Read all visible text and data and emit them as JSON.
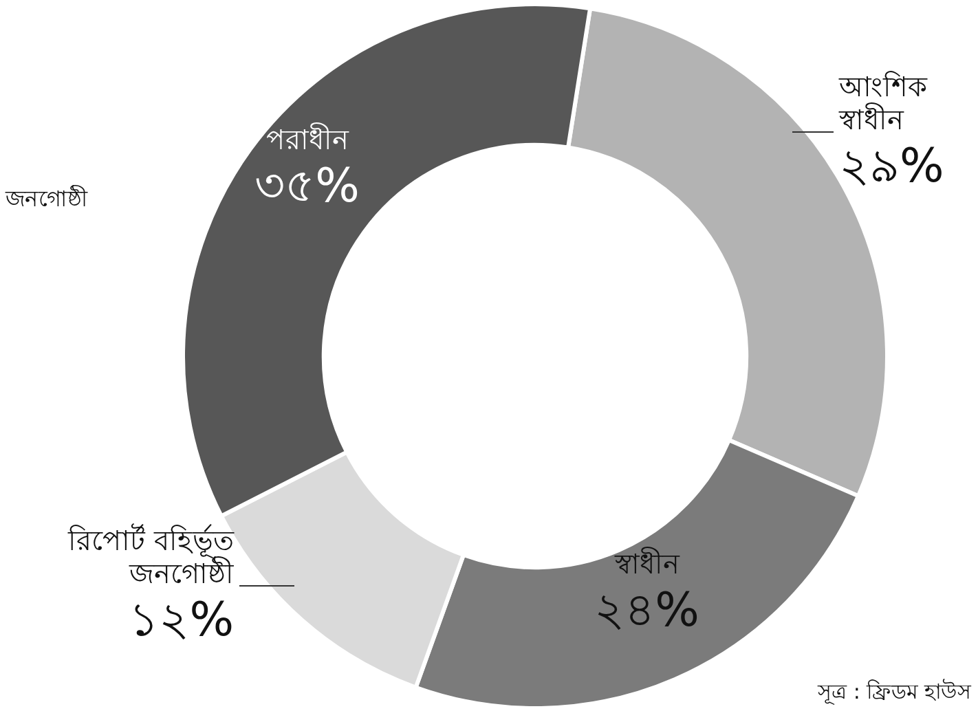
{
  "chart_data": {
    "type": "donut",
    "categories": [
      "আংশিক স্বাধীন",
      "স্বাধীন",
      "রিপোর্ট বহির্ভূত জনগোষ্ঠী",
      "পরাধীন"
    ],
    "values": [
      29,
      24,
      12,
      35
    ],
    "colors": [
      "#b3b3b3",
      "#7b7b7b",
      "#dadada",
      "#575757"
    ],
    "value_labels": [
      "২৯%",
      "২৪%",
      "১২%",
      "৩৫%"
    ],
    "annotations": [
      "জনগোষ্ঠী",
      "সূত্র : ফ্রিডম হাউস"
    ]
  }
}
